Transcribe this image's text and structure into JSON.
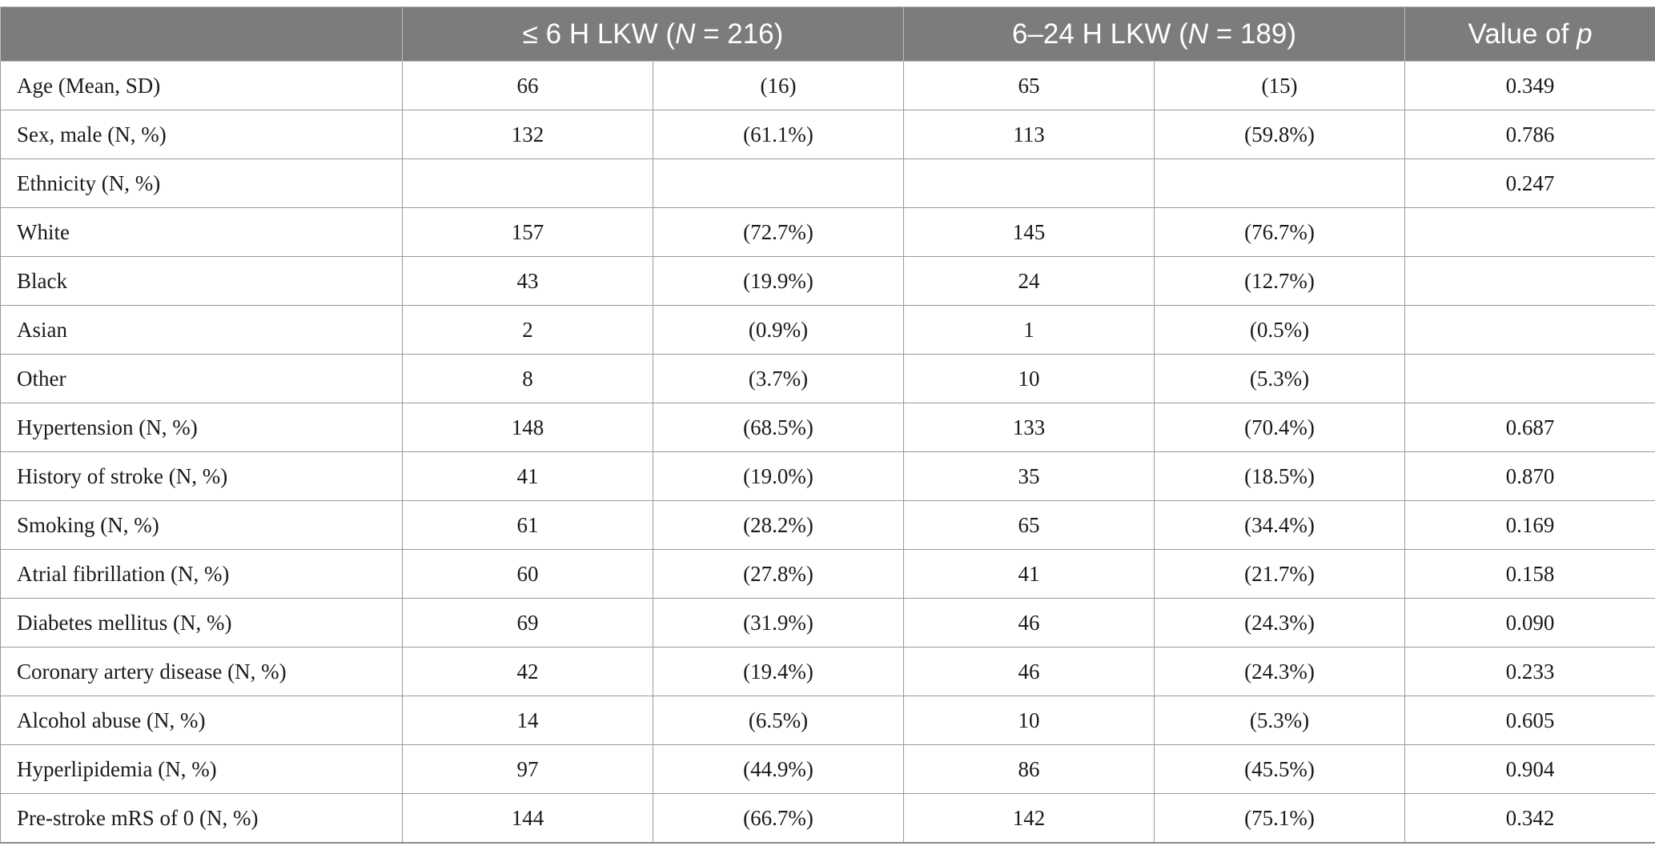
{
  "header": {
    "col0": "",
    "group1_prefix": "≤ 6 H LKW (",
    "group1_n_symbol": "N",
    "group1_n_value": " = 216)",
    "group2_prefix": "6–24 H LKW (",
    "group2_n_symbol": "N",
    "group2_n_value": " = 189)",
    "pvalue_prefix": "Value of ",
    "pvalue_symbol": "p"
  },
  "rows": [
    {
      "label": "Age (Mean, SD)",
      "g1_n": "66",
      "g1_pct": "(16)",
      "g2_n": "65",
      "g2_pct": "(15)",
      "p": "0.349"
    },
    {
      "label": "Sex, male (N, %)",
      "g1_n": "132",
      "g1_pct": "(61.1%)",
      "g2_n": "113",
      "g2_pct": "(59.8%)",
      "p": "0.786"
    },
    {
      "label": "Ethnicity (N, %)",
      "g1_n": "",
      "g1_pct": "",
      "g2_n": "",
      "g2_pct": "",
      "p": "0.247"
    },
    {
      "label": "White",
      "g1_n": "157",
      "g1_pct": "(72.7%)",
      "g2_n": "145",
      "g2_pct": "(76.7%)",
      "p": ""
    },
    {
      "label": "Black",
      "g1_n": "43",
      "g1_pct": "(19.9%)",
      "g2_n": "24",
      "g2_pct": "(12.7%)",
      "p": ""
    },
    {
      "label": "Asian",
      "g1_n": "2",
      "g1_pct": "(0.9%)",
      "g2_n": "1",
      "g2_pct": "(0.5%)",
      "p": ""
    },
    {
      "label": "Other",
      "g1_n": "8",
      "g1_pct": "(3.7%)",
      "g2_n": "10",
      "g2_pct": "(5.3%)",
      "p": ""
    },
    {
      "label": "Hypertension (N, %)",
      "g1_n": "148",
      "g1_pct": "(68.5%)",
      "g2_n": "133",
      "g2_pct": "(70.4%)",
      "p": "0.687"
    },
    {
      "label": "History of stroke (N, %)",
      "g1_n": "41",
      "g1_pct": "(19.0%)",
      "g2_n": "35",
      "g2_pct": "(18.5%)",
      "p": "0.870"
    },
    {
      "label": "Smoking (N, %)",
      "g1_n": "61",
      "g1_pct": "(28.2%)",
      "g2_n": "65",
      "g2_pct": "(34.4%)",
      "p": "0.169"
    },
    {
      "label": "Atrial fibrillation (N, %)",
      "g1_n": "60",
      "g1_pct": "(27.8%)",
      "g2_n": "41",
      "g2_pct": "(21.7%)",
      "p": "0.158"
    },
    {
      "label": "Diabetes mellitus (N, %)",
      "g1_n": "69",
      "g1_pct": "(31.9%)",
      "g2_n": "46",
      "g2_pct": "(24.3%)",
      "p": "0.090"
    },
    {
      "label": "Coronary artery disease (N, %)",
      "g1_n": "42",
      "g1_pct": "(19.4%)",
      "g2_n": "46",
      "g2_pct": "(24.3%)",
      "p": "0.233"
    },
    {
      "label": "Alcohol abuse (N, %)",
      "g1_n": "14",
      "g1_pct": "(6.5%)",
      "g2_n": "10",
      "g2_pct": "(5.3%)",
      "p": "0.605"
    },
    {
      "label": "Hyperlipidemia (N, %)",
      "g1_n": "97",
      "g1_pct": "(44.9%)",
      "g2_n": "86",
      "g2_pct": "(45.5%)",
      "p": "0.904"
    },
    {
      "label": "Pre-stroke mRS of 0 (N, %)",
      "g1_n": "144",
      "g1_pct": "(66.7%)",
      "g2_n": "142",
      "g2_pct": "(75.1%)",
      "p": "0.342"
    }
  ]
}
